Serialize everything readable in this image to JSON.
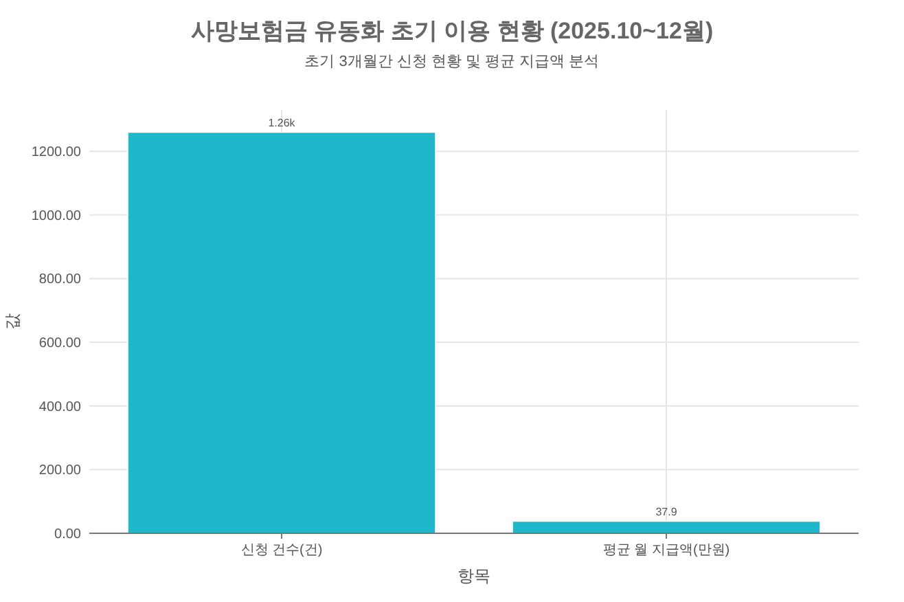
{
  "chart_data": {
    "type": "bar",
    "title": "사망보험금 유동화 초기 이용 현황 (2025.10~12월)",
    "subtitle": "초기 3개월간 신청 현황 및 평균 지급액 분석",
    "xlabel": "항목",
    "ylabel": "값",
    "categories": [
      "신청 건수(건)",
      "평균 월 지급액(만원)"
    ],
    "values": [
      1260,
      37.9
    ],
    "value_labels": [
      "1.26k",
      "37.9"
    ],
    "color": "#21b7cb",
    "ylim": [
      0,
      1330
    ],
    "yticks": [
      {
        "value": 0,
        "label": "0.00"
      },
      {
        "value": 200,
        "label": "200.00"
      },
      {
        "value": 400,
        "label": "400.00"
      },
      {
        "value": 600,
        "label": "600.00"
      },
      {
        "value": 800,
        "label": "800.00"
      },
      {
        "value": 1000,
        "label": "1000.00"
      },
      {
        "value": 1200,
        "label": "1200.00"
      }
    ],
    "grid": true
  }
}
